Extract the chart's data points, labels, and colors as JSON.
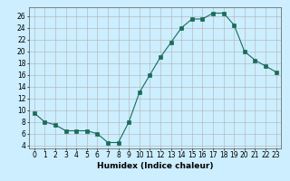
{
  "x": [
    0,
    1,
    2,
    3,
    4,
    5,
    6,
    7,
    8,
    9,
    10,
    11,
    12,
    13,
    14,
    15,
    16,
    17,
    18,
    19,
    20,
    21,
    22,
    23
  ],
  "y": [
    9.5,
    8.0,
    7.5,
    6.5,
    6.5,
    6.5,
    6.0,
    4.5,
    4.5,
    8.0,
    13.0,
    16.0,
    19.0,
    21.5,
    24.0,
    25.5,
    25.5,
    26.5,
    26.5,
    24.5,
    20.0,
    18.5,
    17.5,
    16.5
  ],
  "line_color": "#1a6b5a",
  "marker": "s",
  "marker_size": 2.5,
  "bg_color": "#cceeff",
  "grid_color_major": "#b0b0b0",
  "grid_color_minor": "#d8d8d8",
  "xlabel": "Humidex (Indice chaleur)",
  "ylabel_ticks": [
    4,
    6,
    8,
    10,
    12,
    14,
    16,
    18,
    20,
    22,
    24,
    26
  ],
  "ylim": [
    3.5,
    27.5
  ],
  "xlim": [
    -0.5,
    23.5
  ],
  "xticks": [
    0,
    1,
    2,
    3,
    4,
    5,
    6,
    7,
    8,
    9,
    10,
    11,
    12,
    13,
    14,
    15,
    16,
    17,
    18,
    19,
    20,
    21,
    22,
    23
  ],
  "label_fontsize": 6.5,
  "tick_fontsize": 5.5
}
